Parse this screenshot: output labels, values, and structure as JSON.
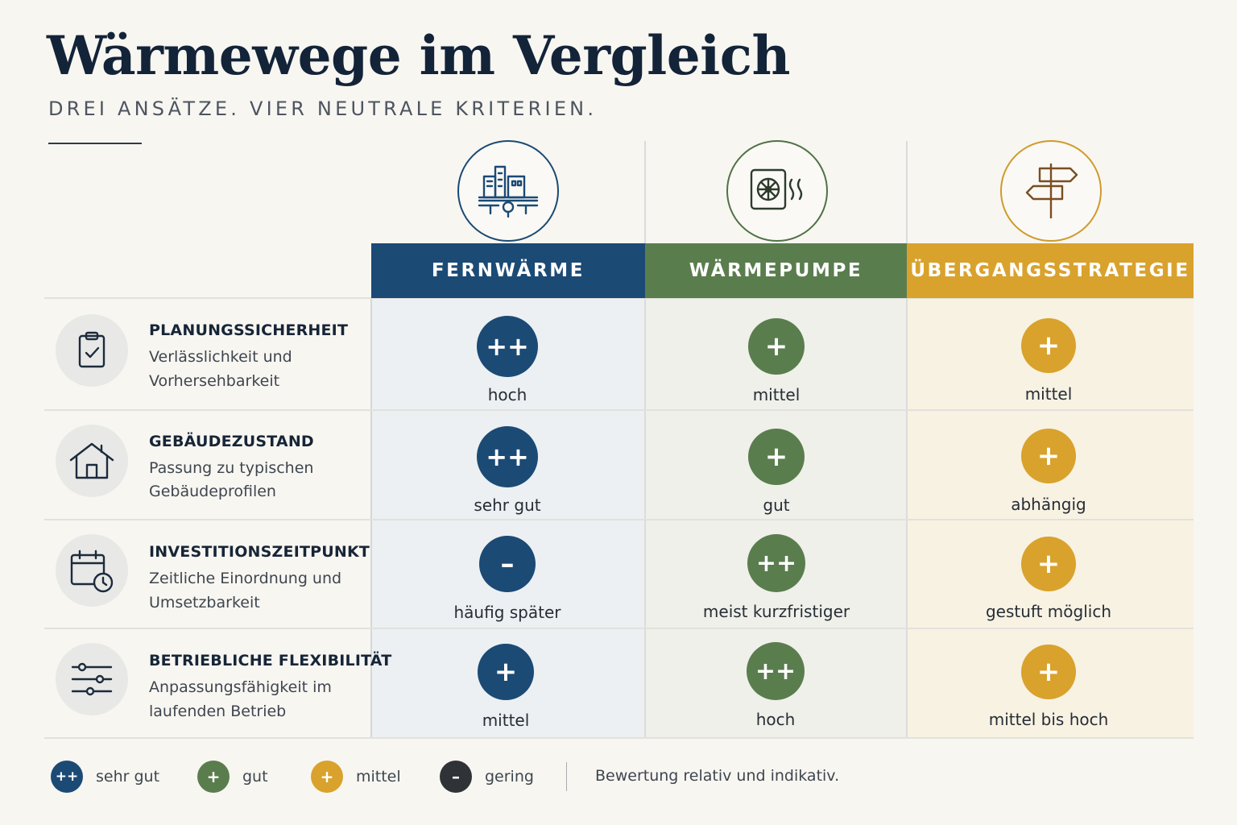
{
  "title": "Wärmewege im Vergleich",
  "subtitle": "DREI ANSÄTZE. VIER NEUTRALE KRITERIEN.",
  "colors": {
    "fernwaerme": "#1b4a75",
    "waermepumpe": "#5a7d4e",
    "uebergang": "#d9a22c",
    "gering": "#2f3236"
  },
  "columns": [
    {
      "label": "FERNWÄRME",
      "icon": "district-heating-icon"
    },
    {
      "label": "WÄRMEPUMPE",
      "icon": "heat-pump-icon"
    },
    {
      "label": "ÜBERGANGSSTRATEGIE",
      "icon": "signpost-icon"
    }
  ],
  "criteria": [
    {
      "title": "PLANUNGSSICHERHEIT",
      "desc1": "Verlässlichkeit und",
      "desc2": "Vorhersehbarkeit",
      "icon": "clipboard-check-icon",
      "ratings": [
        {
          "symbol": "++",
          "label": "hoch"
        },
        {
          "symbol": "+",
          "label": "mittel"
        },
        {
          "symbol": "+",
          "label": "mittel"
        }
      ]
    },
    {
      "title": "GEBÄUDEZUSTAND",
      "desc1": "Passung zu typischen",
      "desc2": "Gebäudeprofilen",
      "icon": "house-icon",
      "ratings": [
        {
          "symbol": "++",
          "label": "sehr gut"
        },
        {
          "symbol": "+",
          "label": "gut"
        },
        {
          "symbol": "+",
          "label": "abhängig"
        }
      ]
    },
    {
      "title": "INVESTITIONSZEITPUNKT",
      "desc1": "Zeitliche Einordnung und",
      "desc2": "Umsetzbarkeit",
      "icon": "calendar-clock-icon",
      "ratings": [
        {
          "symbol": "–",
          "label": "häufig später"
        },
        {
          "symbol": "++",
          "label": "meist kurzfristiger"
        },
        {
          "symbol": "+",
          "label": "gestuft möglich"
        }
      ]
    },
    {
      "title": "BETRIEBLICHE FLEXIBILITÄT",
      "desc1": "Anpassungsfähigkeit im",
      "desc2": "laufenden Betrieb",
      "icon": "sliders-icon",
      "ratings": [
        {
          "symbol": "+",
          "label": "mittel"
        },
        {
          "symbol": "++",
          "label": "hoch"
        },
        {
          "symbol": "+",
          "label": "mittel bis hoch"
        }
      ]
    }
  ],
  "legend": {
    "items": [
      {
        "symbol": "++",
        "label": "sehr gut"
      },
      {
        "symbol": "+",
        "label": "gut"
      },
      {
        "symbol": "+",
        "label": "mittel"
      },
      {
        "symbol": "–",
        "label": "gering"
      }
    ],
    "note": "Bewertung relativ und indikativ."
  }
}
